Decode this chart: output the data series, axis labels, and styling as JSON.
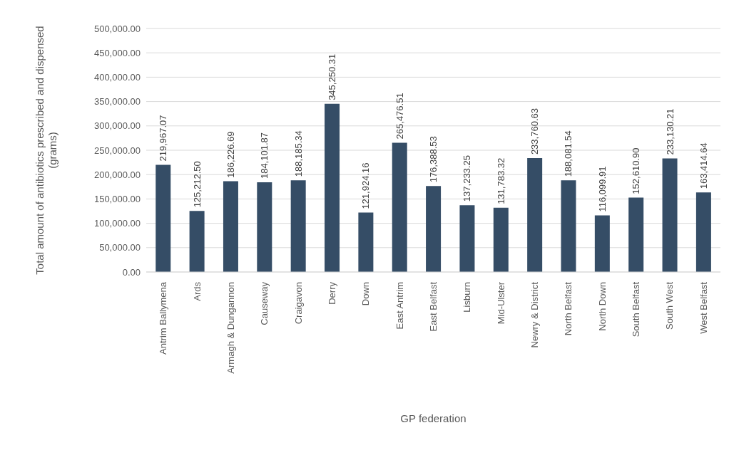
{
  "chart_data": {
    "type": "bar",
    "xlabel": "GP federation",
    "ylabel": "Total amount of antibiotics prescribed and dispensed (grams)",
    "categories": [
      "Antrim Ballymena",
      "Ards",
      "Armagh & Dungannon",
      "Causeway",
      "Craigavon",
      "Derry",
      "Down",
      "East Antrim",
      "East Belfast",
      "Lisburn",
      "Mid-Ulster",
      "Newry & District",
      "North Belfast",
      "North Down",
      "South Belfast",
      "South West",
      "West Belfast"
    ],
    "values": [
      219967.07,
      125212.5,
      186226.69,
      184101.87,
      188185.34,
      345250.31,
      121924.16,
      265476.51,
      176388.53,
      137233.25,
      131783.32,
      233760.63,
      188081.54,
      116099.91,
      152610.9,
      233130.21,
      163414.64
    ],
    "value_labels": [
      "219,967.07",
      "125,212.50",
      "186,226.69",
      "184,101.87",
      "188,185.34",
      "345,250.31",
      "121,924.16",
      "265,476.51",
      "176,388.53",
      "137,233.25",
      "131,783.32",
      "233,760.63",
      "188,081.54",
      "116,099.91",
      "152,610.90",
      "233,130.21",
      "163,414.64"
    ],
    "color": "#354d66",
    "ylim": [
      0,
      500000
    ],
    "yticks": [
      {
        "value": 0,
        "label": "0.00"
      },
      {
        "value": 50000,
        "label": "50,000.00"
      },
      {
        "value": 100000,
        "label": "100,000.00"
      },
      {
        "value": 150000,
        "label": "150,000.00"
      },
      {
        "value": 200000,
        "label": "200,000.00"
      },
      {
        "value": 250000,
        "label": "250,000.00"
      },
      {
        "value": 300000,
        "label": "300,000.00"
      },
      {
        "value": 350000,
        "label": "350,000.00"
      },
      {
        "value": 400000,
        "label": "400,000.00"
      },
      {
        "value": 450000,
        "label": "450,000.00"
      },
      {
        "value": 500000,
        "label": "500,000.00"
      }
    ],
    "grid": "y"
  }
}
